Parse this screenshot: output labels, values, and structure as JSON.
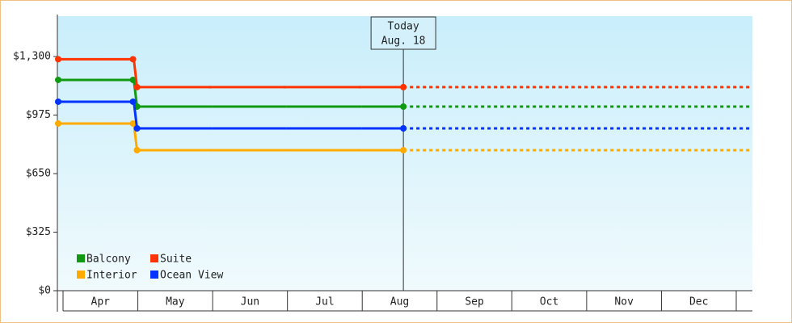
{
  "chart_data": {
    "type": "line",
    "categories": [
      "Apr",
      "May",
      "Jun",
      "Jul",
      "Aug",
      "Sep",
      "Oct",
      "Nov",
      "Dec"
    ],
    "series": [
      {
        "name": "Balcony",
        "color": "#119911",
        "values": [
          1170,
          1022,
          1022,
          1022,
          1022,
          null,
          null,
          null,
          null
        ]
      },
      {
        "name": "Suite",
        "color": "#ff3300",
        "values": [
          1285,
          1130,
          1130,
          1130,
          1130,
          null,
          null,
          null,
          null
        ]
      },
      {
        "name": "Interior",
        "color": "#ffaa00",
        "values": [
          928,
          780,
          780,
          780,
          780,
          null,
          null,
          null,
          null
        ]
      },
      {
        "name": "Ocean View",
        "color": "#0033ff",
        "values": [
          1049,
          901,
          901,
          901,
          901,
          null,
          null,
          null,
          null
        ]
      }
    ],
    "ylim": [
      0,
      1524
    ],
    "yticks": [
      {
        "value": 0,
        "label": "$0"
      },
      {
        "value": 325,
        "label": "$325"
      },
      {
        "value": 650,
        "label": "$650"
      },
      {
        "value": 975,
        "label": "$975"
      },
      {
        "value": 1300,
        "label": "$1,300"
      }
    ],
    "today": [
      "Today",
      "Aug. 18"
    ],
    "legend": "bottom-left"
  }
}
